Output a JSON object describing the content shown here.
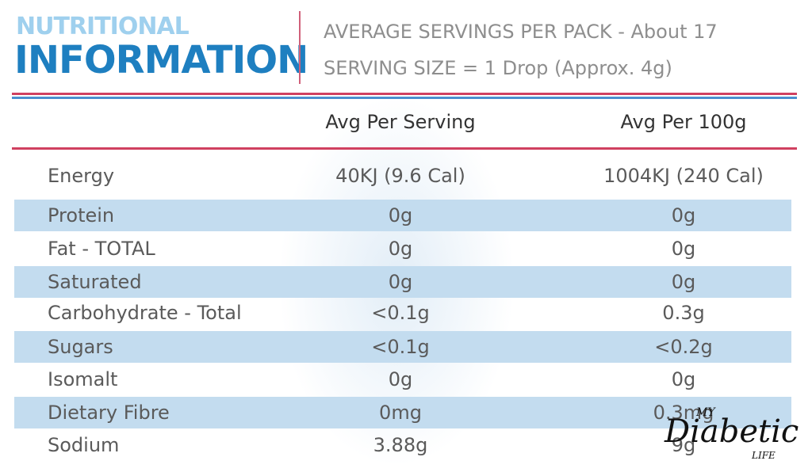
{
  "header": {
    "title_top": "NUTRITIONAL",
    "title_main": "INFORMATION",
    "servings_per_pack": "AVERAGE SERVINGS PER PACK - About 17",
    "serving_size": "SERVING SIZE = 1 Drop (Approx. 4g)"
  },
  "table": {
    "columns": [
      "Avg Per Serving",
      "Avg Per 100g"
    ],
    "rows": [
      [
        "Energy",
        "40KJ (9.6 Cal)",
        "1004KJ (240 Cal)"
      ],
      [
        "Protein",
        "0g",
        "0g"
      ],
      [
        "Fat - TOTAL",
        "0g",
        "0g"
      ],
      [
        "Saturated",
        "0g",
        "0g"
      ],
      [
        "Carbohydrate - Total",
        "<0.1g",
        "0.3g"
      ],
      [
        "Sugars",
        "<0.1g",
        "<0.2g"
      ],
      [
        "Isomalt",
        "0g",
        "0g"
      ],
      [
        "Dietary Fibre",
        "0mg",
        "0.3mg"
      ],
      [
        "Sodium",
        "3.88g",
        "9g"
      ]
    ]
  },
  "watermark": [
    "MY",
    "Diabetic",
    "LIFE"
  ]
}
